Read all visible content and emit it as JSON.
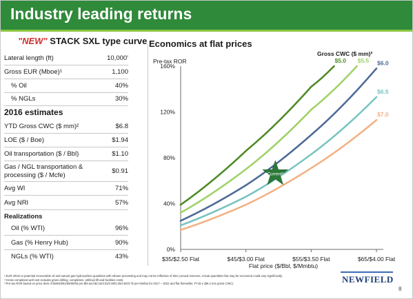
{
  "header": {
    "title": "Industry leading returns"
  },
  "left_panel": {
    "title_new": "\"NEW\"",
    "title_rest": " STACK SXL type curve",
    "type_curve": [
      {
        "label": "Lateral length (ft)",
        "value": "10,000'"
      },
      {
        "label": "Gross EUR (Mboe)¹",
        "value": "1,100"
      },
      {
        "label": "% Oil",
        "value": "40%"
      },
      {
        "label": "% NGLs",
        "value": "30%"
      }
    ],
    "estimates_title": "2016 estimates",
    "estimates": [
      {
        "label": "YTD Gross CWC ($ mm)²",
        "value": "$6.8"
      },
      {
        "label": "LOE ($ / Boe)",
        "value": "$1.94"
      },
      {
        "label": "Oil transportation ($ / Bbl)",
        "value": "$1.10"
      },
      {
        "label": "Gas / NGL transportation &",
        "label2": "processing ($ / Mcfe)",
        "value": "$0.91"
      },
      {
        "label": "Avg WI",
        "value": "71%"
      },
      {
        "label": "Avg NRI",
        "value": "57%"
      }
    ],
    "realizations_title": "Realizations",
    "realizations": [
      {
        "label": "Oil (% WTI)",
        "value": "96%"
      },
      {
        "label": "Gas (% Henry Hub)",
        "value": "90%"
      },
      {
        "label": "NGLs (% WTI)",
        "value": "43%"
      }
    ]
  },
  "chart_data": {
    "type": "line",
    "title": "Economics at flat prices",
    "ylabel": "Pre-tax ROR",
    "xlabel": "Flat price ($/Bbl, $/Mmbtu)",
    "x_ticks": [
      "$35/$2.50 Flat",
      "$45/$3.00 Flat",
      "$55/$3.50 Flat",
      "$65/$4.00 Flat"
    ],
    "x": [
      35,
      45,
      55,
      65
    ],
    "xlim": [
      35,
      65
    ],
    "y_ticks": [
      "0%",
      "40%",
      "80%",
      "120%",
      "160%"
    ],
    "ylim": [
      0,
      160
    ],
    "legend_title": "Gross CWC ($ mm)²",
    "series": [
      {
        "name": "$5.0",
        "color": "#4e8a25",
        "x": [
          35,
          45,
          55,
          58.5
        ],
        "values": [
          39,
          86,
          142,
          160
        ]
      },
      {
        "name": "$5.5",
        "color": "#9fd26a",
        "x": [
          35,
          45,
          55,
          62
        ],
        "values": [
          32,
          70,
          122,
          160
        ]
      },
      {
        "name": "$6.0",
        "color": "#4e6b96",
        "x": [
          35,
          45,
          55,
          65
        ],
        "values": [
          25,
          56,
          100,
          158
        ]
      },
      {
        "name": "$6.5",
        "color": "#78c4c2",
        "x": [
          35,
          45,
          55,
          65
        ],
        "values": [
          21,
          46,
          83,
          133
        ]
      },
      {
        "name": "$7.0",
        "color": "#f2b283",
        "x": [
          35,
          45,
          55,
          65
        ],
        "values": [
          17,
          39,
          71,
          113
        ]
      }
    ],
    "annotations": [
      {
        "text": "Current³",
        "x": 49.5,
        "y": 66
      }
    ],
    "grid": false
  },
  "footnotes": [
    "¹ EUR refers to potential recoverable oil and natural gas hydrocarbon quantities with ethane processing and may not be reflective of SEC proved reserves. Actual quantities that may be recovered could vary significantly.",
    "² Gross completed well cost includes gross drilling, completion, artificial lift and facilities costs.",
    "³ Pre-tax ROR based on price deck of $46/49/51/55/60/65 per Bbl and $3.16/3.02/2.99/3.25/3.50/3.75 per Mmbtu for 2017 – 2022 and flat thereafter. FY16 e ($6.2 mm gross CWC)."
  ],
  "logo": {
    "text": "NEWFIELD"
  },
  "page": {
    "number": "8"
  }
}
